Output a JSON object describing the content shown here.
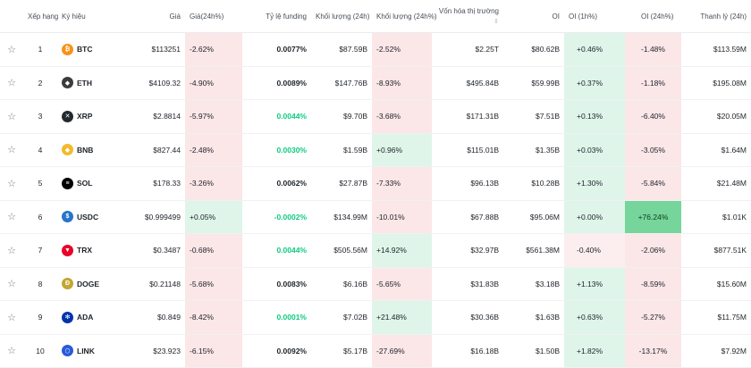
{
  "headers": {
    "rank": "Xếp hạng",
    "symbol": "Ký hiệu",
    "price": "Giá",
    "price_change": "Giá(24h%)",
    "funding": "Tỷ lệ funding",
    "volume": "Khối lượng (24h)",
    "volume_change": "Khối lượng (24h%)",
    "mcap": "Vốn hóa thị trường",
    "oi": "OI",
    "oi_1h": "OI (1h%)",
    "oi_24h": "OI (24h%)",
    "liq": "Thanh lý (24h)"
  },
  "rows": [
    {
      "rank": "1",
      "symbol": "BTC",
      "price": "$113251",
      "pc": "-2.62%",
      "funding": "0.0077%",
      "vol": "$87.59B",
      "vc": "-2.52%",
      "mcap": "$2.25T",
      "oi": "$80.62B",
      "oi1": "+0.46%",
      "oi24": "-1.48%",
      "liq": "$113.59M"
    },
    {
      "rank": "2",
      "symbol": "ETH",
      "price": "$4109.32",
      "pc": "-4.90%",
      "funding": "0.0089%",
      "vol": "$147.76B",
      "vc": "-8.93%",
      "mcap": "$495.84B",
      "oi": "$59.99B",
      "oi1": "+0.37%",
      "oi24": "-1.18%",
      "liq": "$195.08M"
    },
    {
      "rank": "3",
      "symbol": "XRP",
      "price": "$2.8814",
      "pc": "-5.97%",
      "funding": "0.0044%",
      "vol": "$9.70B",
      "vc": "-3.68%",
      "mcap": "$171.31B",
      "oi": "$7.51B",
      "oi1": "+0.13%",
      "oi24": "-6.40%",
      "liq": "$20.05M"
    },
    {
      "rank": "4",
      "symbol": "BNB",
      "price": "$827.44",
      "pc": "-2.48%",
      "funding": "0.0030%",
      "vol": "$1.59B",
      "vc": "+0.96%",
      "mcap": "$115.01B",
      "oi": "$1.35B",
      "oi1": "+0.03%",
      "oi24": "-3.05%",
      "liq": "$1.64M"
    },
    {
      "rank": "5",
      "symbol": "SOL",
      "price": "$178.33",
      "pc": "-3.26%",
      "funding": "0.0062%",
      "vol": "$27.87B",
      "vc": "-7.33%",
      "mcap": "$96.13B",
      "oi": "$10.28B",
      "oi1": "+1.30%",
      "oi24": "-5.84%",
      "liq": "$21.48M"
    },
    {
      "rank": "6",
      "symbol": "USDC",
      "price": "$0.999499",
      "pc": "+0.05%",
      "funding": "-0.0002%",
      "vol": "$134.99M",
      "vc": "-10.01%",
      "mcap": "$67.88B",
      "oi": "$95.06M",
      "oi1": "+0.00%",
      "oi24": "+76.24%",
      "liq": "$1.01K"
    },
    {
      "rank": "7",
      "symbol": "TRX",
      "price": "$0.3487",
      "pc": "-0.68%",
      "funding": "0.0044%",
      "vol": "$505.56M",
      "vc": "+14.92%",
      "mcap": "$32.97B",
      "oi": "$561.38M",
      "oi1": "-0.40%",
      "oi24": "-2.06%",
      "liq": "$877.51K"
    },
    {
      "rank": "8",
      "symbol": "DOGE",
      "price": "$0.21148",
      "pc": "-5.68%",
      "funding": "0.0083%",
      "vol": "$6.16B",
      "vc": "-5.65%",
      "mcap": "$31.83B",
      "oi": "$3.18B",
      "oi1": "+1.13%",
      "oi24": "-8.59%",
      "liq": "$15.60M"
    },
    {
      "rank": "9",
      "symbol": "ADA",
      "price": "$0.849",
      "pc": "-8.42%",
      "funding": "0.0001%",
      "vol": "$7.02B",
      "vc": "+21.48%",
      "mcap": "$30.36B",
      "oi": "$1.63B",
      "oi1": "+0.63%",
      "oi24": "-5.27%",
      "liq": "$11.75M"
    },
    {
      "rank": "10",
      "symbol": "LINK",
      "price": "$23.923",
      "pc": "-6.15%",
      "funding": "0.0092%",
      "vol": "$5.17B",
      "vc": "-27.69%",
      "mcap": "$16.18B",
      "oi": "$1.50B",
      "oi1": "+1.82%",
      "oi24": "-13.17%",
      "liq": "$7.92M"
    }
  ],
  "coin_colors": {
    "BTC": "#f7931a",
    "ETH": "#3c3c3d",
    "XRP": "#23292f",
    "BNB": "#f3ba2f",
    "SOL": "#000000",
    "USDC": "#2775ca",
    "TRX": "#eb0029",
    "DOGE": "#c2a633",
    "ADA": "#0033ad",
    "LINK": "#2a5ada"
  },
  "coin_glyphs": {
    "BTC": "₿",
    "ETH": "◆",
    "XRP": "✕",
    "BNB": "◆",
    "SOL": "≡",
    "USDC": "$",
    "TRX": "▼",
    "DOGE": "Ð",
    "ADA": "✻",
    "LINK": "⬡"
  }
}
